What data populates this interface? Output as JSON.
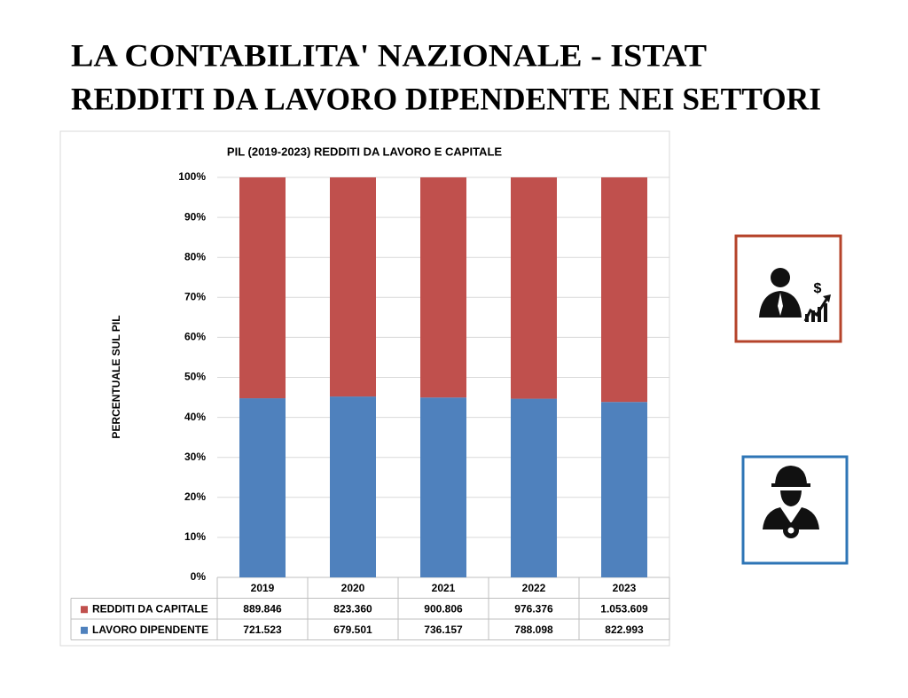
{
  "header": {
    "title": "LA CONTABILITA' NAZIONALE - ISTAT",
    "subtitle": "REDDITI DA LAVORO DIPENDENTE NEI SETTORI"
  },
  "chart_data": {
    "type": "bar",
    "stacked": "percent",
    "title": "PIL (2019-2023) REDDITI DA LAVORO E CAPITALE",
    "y_label": "PERCENTUALE SUL PIL",
    "categories": [
      "2019",
      "2020",
      "2021",
      "2022",
      "2023"
    ],
    "series": [
      {
        "name": "REDDITI DA CAPITALE",
        "color": "#c0504d",
        "values": [
          889846,
          823360,
          900806,
          976376,
          1053609
        ],
        "value_labels": [
          "889.846",
          "823.360",
          "900.806",
          "976.376",
          "1.053.609"
        ]
      },
      {
        "name": "LAVORO DIPENDENTE",
        "color": "#4f81bd",
        "values": [
          721523,
          679501,
          736157,
          788098,
          822993
        ],
        "value_labels": [
          "721.523",
          "679.501",
          "736.157",
          "788.098",
          "822.993"
        ]
      }
    ],
    "ylim": [
      0,
      100
    ],
    "yticks": [
      {
        "value": 0,
        "label": "0%"
      },
      {
        "value": 10,
        "label": "10%"
      },
      {
        "value": 20,
        "label": "20%"
      },
      {
        "value": 30,
        "label": "30%"
      },
      {
        "value": 40,
        "label": "40%"
      },
      {
        "value": 50,
        "label": "50%"
      },
      {
        "value": 60,
        "label": "60%"
      },
      {
        "value": 70,
        "label": "70%"
      },
      {
        "value": 80,
        "label": "80%"
      },
      {
        "value": 90,
        "label": "90%"
      },
      {
        "value": 100,
        "label": "100%"
      }
    ],
    "grid": true
  }
}
